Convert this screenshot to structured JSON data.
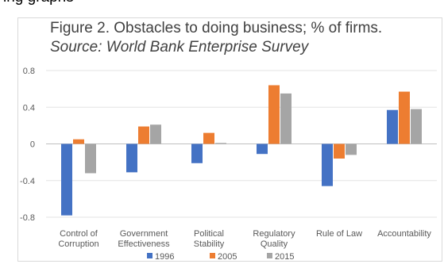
{
  "top_text": "ing graphs",
  "chart_data": {
    "type": "bar",
    "title": "Figure 2. Obstacles to doing business; % of firms.",
    "subtitle": "Source: World Bank Enterprise Survey",
    "categories": [
      [
        "Control of",
        "Corruption"
      ],
      [
        "Government",
        "Effectiveness"
      ],
      [
        "Political",
        "Stability"
      ],
      [
        "Regulatory",
        "Quality"
      ],
      [
        "Rule of Law"
      ],
      [
        "Accountability"
      ]
    ],
    "series": [
      {
        "name": "1996",
        "color": "#4472c4",
        "values": [
          -0.78,
          -0.31,
          -0.21,
          -0.11,
          -0.46,
          0.37
        ]
      },
      {
        "name": "2005",
        "color": "#ed7d31",
        "values": [
          0.05,
          0.19,
          0.12,
          0.64,
          -0.16,
          0.57
        ]
      },
      {
        "name": "2015",
        "color": "#a5a5a5",
        "values": [
          -0.32,
          0.21,
          0.01,
          0.55,
          -0.12,
          0.38
        ]
      }
    ],
    "yticks": [
      "0.8",
      "0.4",
      "0",
      "-0.4",
      "-0.8"
    ],
    "ylim": [
      -0.8,
      0.8
    ],
    "grid": true,
    "legend": "bottom"
  }
}
